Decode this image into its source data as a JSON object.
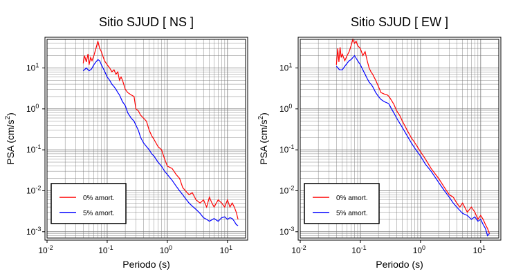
{
  "chart_data": [
    {
      "type": "line",
      "title": "Sitio SJUD [ NS ]",
      "xlabel": "Periodo (s)",
      "ylabel_main": "PSA (cm/s",
      "ylabel_sup": "2",
      "ylabel_end": ")",
      "xscale": "log",
      "yscale": "log",
      "xlim": [
        0.01,
        20
      ],
      "ylim": [
        0.0007,
        50
      ],
      "grid": true,
      "legend_position": "bottom-left",
      "x_ticks": [
        {
          "value": 0.01,
          "base": "10",
          "exp": "-2"
        },
        {
          "value": 0.1,
          "base": "10",
          "exp": "-1"
        },
        {
          "value": 1,
          "base": "10",
          "exp": "0"
        },
        {
          "value": 10,
          "base": "10",
          "exp": "1"
        }
      ],
      "y_ticks": [
        {
          "value": 0.001,
          "base": "10",
          "exp": "-3"
        },
        {
          "value": 0.01,
          "base": "10",
          "exp": "-2"
        },
        {
          "value": 0.1,
          "base": "10",
          "exp": "-1"
        },
        {
          "value": 1,
          "base": "10",
          "exp": "0"
        },
        {
          "value": 10,
          "base": "10",
          "exp": "1"
        }
      ],
      "series": [
        {
          "name": "0% amort.",
          "color": "#ff0000",
          "x": [
            0.04,
            0.042,
            0.045,
            0.048,
            0.05,
            0.053,
            0.056,
            0.06,
            0.065,
            0.07,
            0.075,
            0.08,
            0.09,
            0.1,
            0.11,
            0.12,
            0.13,
            0.14,
            0.15,
            0.16,
            0.17,
            0.18,
            0.2,
            0.22,
            0.25,
            0.28,
            0.3,
            0.33,
            0.36,
            0.4,
            0.45,
            0.5,
            0.55,
            0.6,
            0.7,
            0.8,
            0.9,
            1.0,
            1.2,
            1.4,
            1.6,
            1.8,
            2.0,
            2.3,
            2.6,
            3.0,
            3.5,
            4.0,
            4.5,
            5.0,
            5.5,
            6.0,
            7.0,
            8.0,
            9.0,
            10,
            11,
            12,
            13,
            14,
            15
          ],
          "y": [
            13,
            20,
            14,
            22,
            12,
            18,
            15,
            20,
            30,
            45,
            30,
            25,
            15,
            12,
            10,
            8,
            9,
            7,
            8,
            5,
            6,
            5,
            3,
            2.5,
            2.2,
            2.0,
            1.0,
            0.9,
            0.7,
            0.6,
            0.5,
            0.3,
            0.22,
            0.18,
            0.12,
            0.1,
            0.06,
            0.04,
            0.035,
            0.025,
            0.02,
            0.012,
            0.01,
            0.008,
            0.009,
            0.006,
            0.005,
            0.006,
            0.004,
            0.007,
            0.005,
            0.004,
            0.006,
            0.005,
            0.004,
            0.006,
            0.004,
            0.005,
            0.004,
            0.003,
            0.002
          ]
        },
        {
          "name": "5% amort.",
          "color": "#0000ff",
          "x": [
            0.04,
            0.045,
            0.05,
            0.055,
            0.06,
            0.065,
            0.07,
            0.075,
            0.08,
            0.09,
            0.1,
            0.11,
            0.12,
            0.13,
            0.14,
            0.15,
            0.16,
            0.18,
            0.2,
            0.22,
            0.25,
            0.28,
            0.3,
            0.33,
            0.36,
            0.4,
            0.45,
            0.5,
            0.55,
            0.6,
            0.7,
            0.8,
            0.9,
            1.0,
            1.2,
            1.4,
            1.6,
            1.8,
            2.0,
            2.3,
            2.6,
            3.0,
            3.5,
            4.0,
            4.5,
            5.0,
            6.0,
            7.0,
            8.0,
            9.0,
            10,
            11,
            12,
            13,
            14,
            15
          ],
          "y": [
            8.5,
            10,
            8.5,
            9.5,
            12,
            14,
            16,
            15,
            12,
            8.5,
            6,
            5,
            4,
            3.5,
            3,
            2.5,
            2.2,
            1.5,
            1.2,
            0.8,
            0.6,
            0.5,
            0.4,
            0.3,
            0.2,
            0.15,
            0.12,
            0.1,
            0.08,
            0.07,
            0.05,
            0.04,
            0.03,
            0.025,
            0.018,
            0.013,
            0.01,
            0.008,
            0.0065,
            0.005,
            0.0042,
            0.0035,
            0.0028,
            0.0022,
            0.002,
            0.0018,
            0.0021,
            0.0018,
            0.0022,
            0.0023,
            0.002,
            0.0022,
            0.0021,
            0.0018,
            0.0015,
            0.0014
          ]
        }
      ]
    },
    {
      "type": "line",
      "title": "Sitio SJUD [ EW ]",
      "xlabel": "Periodo (s)",
      "ylabel_main": "PSA (cm/s",
      "ylabel_sup": "2",
      "ylabel_end": ")",
      "xscale": "log",
      "yscale": "log",
      "xlim": [
        0.01,
        20
      ],
      "ylim": [
        0.0007,
        50
      ],
      "grid": true,
      "legend_position": "bottom-left",
      "x_ticks": [
        {
          "value": 0.01,
          "base": "10",
          "exp": "-2"
        },
        {
          "value": 0.1,
          "base": "10",
          "exp": "-1"
        },
        {
          "value": 1,
          "base": "10",
          "exp": "0"
        },
        {
          "value": 10,
          "base": "10",
          "exp": "1"
        }
      ],
      "y_ticks": [
        {
          "value": 0.001,
          "base": "10",
          "exp": "-3"
        },
        {
          "value": 0.01,
          "base": "10",
          "exp": "-2"
        },
        {
          "value": 0.1,
          "base": "10",
          "exp": "-1"
        },
        {
          "value": 1,
          "base": "10",
          "exp": "0"
        },
        {
          "value": 10,
          "base": "10",
          "exp": "1"
        }
      ],
      "series": [
        {
          "name": "0% amort.",
          "color": "#ff0000",
          "x": [
            0.04,
            0.042,
            0.044,
            0.046,
            0.048,
            0.05,
            0.055,
            0.06,
            0.065,
            0.07,
            0.075,
            0.08,
            0.085,
            0.09,
            0.1,
            0.11,
            0.12,
            0.13,
            0.14,
            0.15,
            0.16,
            0.18,
            0.2,
            0.22,
            0.25,
            0.28,
            0.3,
            0.33,
            0.36,
            0.4,
            0.45,
            0.5,
            0.6,
            0.7,
            0.8,
            1.0,
            1.2,
            1.5,
            2.0,
            2.5,
            3.0,
            3.5,
            4.0,
            4.5,
            5.0,
            6.0,
            7.0,
            8.0,
            9.0,
            10,
            11,
            12,
            13,
            14
          ],
          "y": [
            12,
            30,
            14,
            32,
            18,
            22,
            15,
            20,
            25,
            35,
            50,
            40,
            45,
            35,
            30,
            20,
            25,
            15,
            10,
            8,
            7,
            5,
            3.5,
            2.5,
            2.3,
            2.2,
            2.0,
            1.6,
            1.3,
            0.9,
            0.7,
            0.5,
            0.3,
            0.2,
            0.15,
            0.09,
            0.06,
            0.035,
            0.02,
            0.012,
            0.008,
            0.007,
            0.005,
            0.004,
            0.005,
            0.003,
            0.004,
            0.003,
            0.002,
            0.0025,
            0.002,
            0.0015,
            0.0012,
            0.0009
          ]
        },
        {
          "name": "5% amort.",
          "color": "#0000ff",
          "x": [
            0.04,
            0.045,
            0.05,
            0.055,
            0.06,
            0.065,
            0.07,
            0.08,
            0.09,
            0.1,
            0.11,
            0.12,
            0.13,
            0.14,
            0.15,
            0.16,
            0.18,
            0.2,
            0.22,
            0.25,
            0.28,
            0.3,
            0.33,
            0.36,
            0.4,
            0.45,
            0.5,
            0.6,
            0.7,
            0.8,
            1.0,
            1.2,
            1.5,
            2.0,
            2.5,
            3.0,
            3.5,
            4.0,
            5.0,
            6.0,
            7.0,
            8.0,
            9.0,
            10,
            11,
            12,
            13,
            14
          ],
          "y": [
            11,
            9,
            9,
            11,
            13,
            15,
            16,
            20,
            15,
            12,
            9,
            7,
            5.5,
            4.5,
            4,
            3.5,
            2.5,
            2.0,
            1.7,
            1.5,
            1.4,
            1.3,
            1.0,
            0.8,
            0.6,
            0.45,
            0.35,
            0.22,
            0.15,
            0.11,
            0.07,
            0.045,
            0.03,
            0.016,
            0.01,
            0.007,
            0.005,
            0.004,
            0.0028,
            0.0025,
            0.002,
            0.0023,
            0.0018,
            0.002,
            0.0015,
            0.0012,
            0.0008,
            0.0009
          ]
        }
      ]
    }
  ]
}
